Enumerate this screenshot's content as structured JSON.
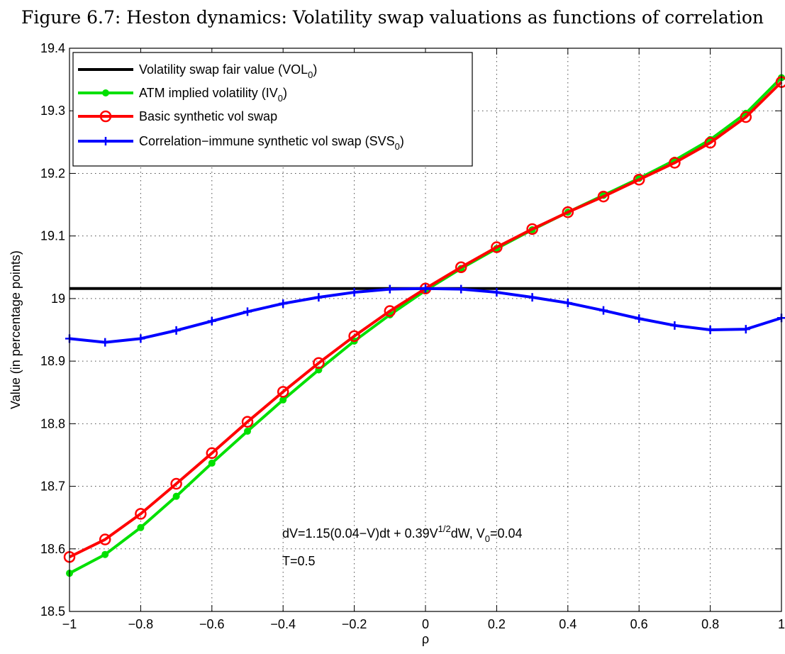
{
  "figure_title": "Figure 6.7: Heston dynamics: Volatility swap valuations as functions of correlation",
  "chart_data": {
    "type": "line",
    "title": "Figure 6.7: Heston dynamics: Volatility swap valuations as functions of correlation",
    "xlabel": "ρ",
    "ylabel": "Value (in percentage points)",
    "xlim": [
      -1,
      1
    ],
    "ylim": [
      18.5,
      19.4
    ],
    "grid": true,
    "legend_position": "top-left",
    "xticks": [
      "−1",
      "−0.8",
      "−0.6",
      "−0.4",
      "−0.2",
      "0",
      "0.2",
      "0.4",
      "0.6",
      "0.8",
      "1"
    ],
    "yticks": [
      "18.5",
      "18.6",
      "18.7",
      "18.8",
      "18.9",
      "19",
      "19.1",
      "19.2",
      "19.3",
      "19.4"
    ],
    "x": [
      -1,
      -0.9,
      -0.8,
      -0.7,
      -0.6,
      -0.5,
      -0.4,
      -0.3,
      -0.2,
      -0.1,
      0,
      0.1,
      0.2,
      0.3,
      0.4,
      0.5,
      0.6,
      0.7,
      0.8,
      0.9,
      1
    ],
    "series": [
      {
        "name": "Volatility swap fair value (VOL0)",
        "name_base": "Volatility swap fair value (VOL",
        "name_sub": "0",
        "name_tail": ")",
        "color": "#000000",
        "marker": "none",
        "values": [
          19.016,
          19.016,
          19.016,
          19.016,
          19.016,
          19.016,
          19.016,
          19.016,
          19.016,
          19.016,
          19.016,
          19.016,
          19.016,
          19.016,
          19.016,
          19.016,
          19.016,
          19.016,
          19.016,
          19.016,
          19.016
        ]
      },
      {
        "name": "ATM implied volatility (IV0)",
        "name_base": "ATM implied volatility (IV",
        "name_sub": "0",
        "name_tail": ")",
        "color": "#00e000",
        "marker": "dot",
        "values": [
          18.561,
          18.591,
          18.634,
          18.684,
          18.737,
          18.788,
          18.838,
          18.886,
          18.932,
          18.974,
          19.013,
          19.048,
          19.08,
          19.11,
          19.138,
          19.165,
          19.192,
          19.221,
          19.254,
          19.296,
          19.353
        ]
      },
      {
        "name": "Basic synthetic vol swap",
        "name_base": "Basic synthetic vol swap",
        "name_sub": "",
        "name_tail": "",
        "color": "#ff0000",
        "marker": "circle",
        "values": [
          18.587,
          18.615,
          18.656,
          18.704,
          18.753,
          18.803,
          18.851,
          18.897,
          18.94,
          18.98,
          19.016,
          19.05,
          19.082,
          19.111,
          19.138,
          19.163,
          19.19,
          19.217,
          19.249,
          19.29,
          19.346
        ]
      },
      {
        "name": "Correlation−immune synthetic vol swap (SVS0)",
        "name_base": "Correlation−immune synthetic vol swap (SVS",
        "name_sub": "0",
        "name_tail": ")",
        "color": "#0000ff",
        "marker": "plus",
        "values": [
          18.936,
          18.93,
          18.936,
          18.949,
          18.964,
          18.979,
          18.992,
          19.002,
          19.01,
          19.015,
          19.016,
          19.015,
          19.01,
          19.002,
          18.993,
          18.981,
          18.968,
          18.957,
          18.95,
          18.951,
          18.969
        ]
      }
    ],
    "annotations": {
      "line1_a": "dV=1.15(0.04−V)dt + 0.39V",
      "line1_sup": "1/2",
      "line1_b": "dW,    V",
      "line1_sub": "0",
      "line1_c": "=0.04",
      "line2": "T=0.5"
    }
  }
}
